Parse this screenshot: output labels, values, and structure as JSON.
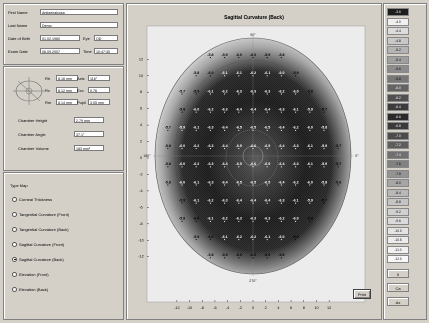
{
  "patient": {
    "labels": [
      "First Name",
      "Last Name",
      "Date of Birth",
      "Exam Date"
    ],
    "values": [
      "Antigenalcosa",
      "Demo",
      "01.02.1960",
      "06.09.2007"
    ],
    "side_labels": [
      "Eye",
      "Time"
    ],
    "side_values": [
      "OD",
      "10:47:30"
    ]
  },
  "measurements": {
    "labels": [
      "Rh",
      "Rv",
      "Rm",
      "Axis",
      "Ecc",
      "Pupil"
    ],
    "values": [
      "8.16 mm",
      "8.12 mm",
      "8.14 mm",
      "116°",
      "0.76",
      "3.05 mm"
    ]
  },
  "chamber": {
    "labels": [
      "Chamber Height",
      "Chamber Angle",
      "Chamber Volume"
    ],
    "values": [
      "2.79 mm",
      "37.1°",
      "183 mm³"
    ]
  },
  "type_map": {
    "title": "Type Map",
    "options": [
      "Corneal Thickness",
      "Tangential Curvature (Front)",
      "Tangential Curvature (Back)",
      "Sagittal Curvature (Front)",
      "Sagittal Curvature (Back)",
      "Elevation (Front)",
      "Elevation (Back)"
    ],
    "selected_index": 4
  },
  "map": {
    "title": "Sagittal Curvature (Back)",
    "axis_ticks": [
      "-12",
      "-10",
      "-8",
      "-6",
      "-4",
      "-2",
      "0",
      "2",
      "4",
      "6",
      "8",
      "10",
      "12"
    ],
    "y_ticks": [
      "12",
      "10",
      "8",
      "6",
      "4",
      "2",
      "0",
      "-2",
      "-4",
      "-6",
      "-8",
      "-10",
      "-12"
    ],
    "angle_labels": [
      "90°",
      "0°",
      "180°",
      "270°"
    ],
    "grid_values": [
      [
        "",
        "",
        "",
        "-5.8",
        "-5.9",
        "-6.0",
        "-6.0",
        "-5.9",
        "-5.8",
        "",
        "",
        "",
        ""
      ],
      [
        "",
        "",
        "-5.8",
        "-6.0",
        "-6.1",
        "-6.1",
        "-6.2",
        "-6.1",
        "-6.0",
        "-5.9",
        "",
        "",
        ""
      ],
      [
        "",
        "-5.7",
        "-5.9",
        "-6.1",
        "-6.2",
        "-6.3",
        "-6.3",
        "-6.3",
        "-6.2",
        "-6.0",
        "-5.8",
        "",
        ""
      ],
      [
        "",
        "-5.8",
        "-6.0",
        "-6.2",
        "-6.3",
        "-6.4",
        "-6.4",
        "-6.4",
        "-6.3",
        "-6.1",
        "-5.9",
        "-5.7",
        ""
      ],
      [
        "-5.7",
        "-5.9",
        "-6.1",
        "-6.3",
        "-6.4",
        "-6.5",
        "-6.5",
        "-6.5",
        "-6.4",
        "-6.2",
        "-6.0",
        "-5.8",
        ""
      ],
      [
        "-5.8",
        "-6.0",
        "-6.2",
        "-6.3",
        "-6.4",
        "-6.5",
        "-6.6",
        "-6.5",
        "-6.4",
        "-6.3",
        "-6.1",
        "-5.9",
        "-5.7"
      ],
      [
        "-5.8",
        "-6.0",
        "-6.2",
        "-6.3",
        "-6.4",
        "-6.5",
        "-6.6",
        "-6.5",
        "-6.4",
        "-6.3",
        "-6.1",
        "-5.9",
        "-5.7"
      ],
      [
        "-5.8",
        "-6.0",
        "-6.1",
        "-6.3",
        "-6.4",
        "-6.5",
        "-6.5",
        "-6.5",
        "-6.4",
        "-6.2",
        "-6.0",
        "-5.8",
        "-5.6"
      ],
      [
        "",
        "-5.9",
        "-6.1",
        "-6.2",
        "-6.3",
        "-6.4",
        "-6.4",
        "-6.4",
        "-6.3",
        "-6.1",
        "-5.9",
        "-5.7",
        ""
      ],
      [
        "",
        "-5.8",
        "-6.0",
        "-6.1",
        "-6.2",
        "-6.3",
        "-6.3",
        "-6.3",
        "-6.2",
        "-6.0",
        "-5.8",
        "",
        ""
      ],
      [
        "",
        "",
        "-5.9",
        "-6.0",
        "-6.1",
        "-6.2",
        "-6.2",
        "-6.1",
        "-6.0",
        "-5.9",
        "",
        "",
        ""
      ],
      [
        "",
        "",
        "",
        "-5.8",
        "-5.9",
        "-6.0",
        "-6.0",
        "-5.9",
        "-5.8",
        "",
        "",
        "",
        ""
      ]
    ],
    "button_label": "Print"
  },
  "color_scale": {
    "values": [
      "-3.6",
      "-4.0",
      "-4.4",
      "-4.8",
      "-5.2",
      "-5.4",
      "-5.6",
      "-5.8",
      "-6.0",
      "-6.2",
      "-6.4",
      "-6.6",
      "-6.8",
      "-7.0",
      "-7.2",
      "-7.4",
      "-7.6",
      "-7.8",
      "-8.0",
      "-8.4",
      "-8.8",
      "-9.2",
      "-9.6",
      "-10.0",
      "-10.5",
      "-11.0",
      "-12.0"
    ],
    "colors": [
      "#1e1e1e",
      "#f0f0f0",
      "#dcdcdc",
      "#c8c8c8",
      "#b4b4b4",
      "#a0a0a0",
      "#8c8c8c",
      "#787878",
      "#646464",
      "#505050",
      "#3c3c3c",
      "#2a2a2a",
      "#3a3a3a",
      "#4c4c4c",
      "#5e5e5e",
      "#707070",
      "#828282",
      "#949494",
      "#a6a6a6",
      "#b8b8b8",
      "#c4c4c4",
      "#d0d0d0",
      "#dadada",
      "#e4e4e4",
      "#ececec",
      "#f2f2f2",
      "#f8f8f8"
    ],
    "buttons": [
      "0",
      "Ca",
      "Ax"
    ]
  }
}
